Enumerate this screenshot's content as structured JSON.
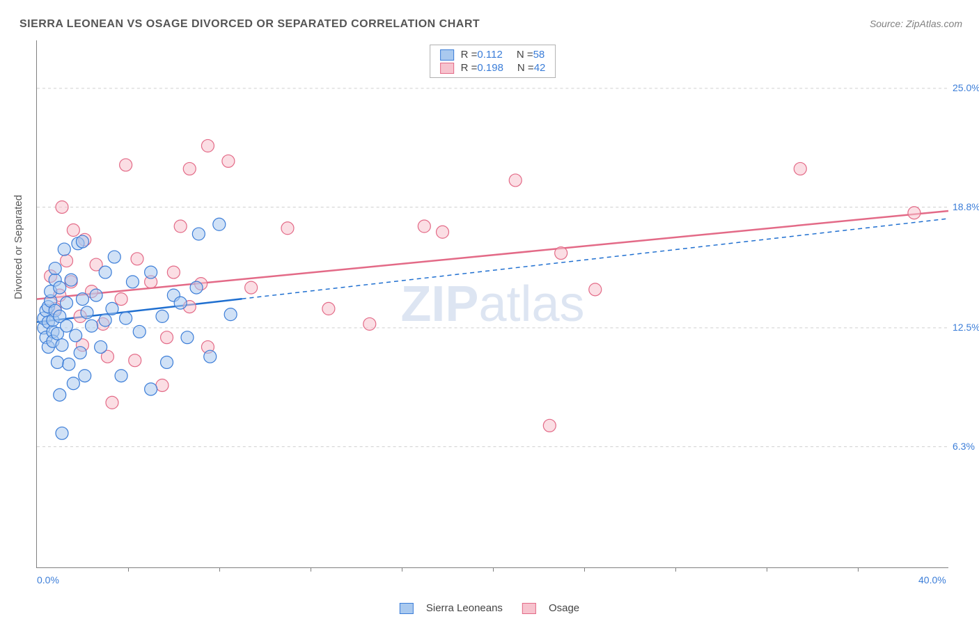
{
  "title": "SIERRA LEONEAN VS OSAGE DIVORCED OR SEPARATED CORRELATION CHART",
  "source": "Source: ZipAtlas.com",
  "ylabel": "Divorced or Separated",
  "watermark_text": "ZIPatlas",
  "chart": {
    "type": "scatter",
    "xlim": [
      0.0,
      40.0
    ],
    "ylim": [
      0.0,
      27.5
    ],
    "x_ticks_labeled": {
      "0": "0.0%",
      "40": "40.0%"
    },
    "x_minor_ticks": [
      4,
      8,
      12,
      16,
      20,
      24,
      28,
      32,
      36
    ],
    "y_gridlines": {
      "6.3": "6.3%",
      "12.5": "12.5%",
      "18.8": "18.8%",
      "25.0": "25.0%"
    },
    "background_color": "#ffffff",
    "grid_color": "#cfcfcf",
    "axis_color": "#808080",
    "tick_label_color": "#3b7dd8",
    "title_color": "#555555",
    "title_fontsize": 16,
    "label_fontsize": 15,
    "tick_fontsize": 14,
    "marker_radius": 9,
    "marker_opacity": 0.55,
    "series": {
      "sierra": {
        "label": "Sierra Leoneans",
        "R": "0.112",
        "N": "58",
        "fill": "#a9c9ef",
        "stroke": "#3b7dd8",
        "trend_color": "#1f6fd0",
        "trend_width": 2.5,
        "trend_solid_x_end": 9.0,
        "trend_y_start": 12.8,
        "trend_y_end": 18.2,
        "points": [
          [
            0.3,
            12.5
          ],
          [
            0.3,
            13.0
          ],
          [
            0.4,
            13.4
          ],
          [
            0.4,
            12.0
          ],
          [
            0.5,
            12.8
          ],
          [
            0.5,
            13.6
          ],
          [
            0.5,
            11.5
          ],
          [
            0.6,
            13.9
          ],
          [
            0.6,
            14.4
          ],
          [
            0.7,
            12.3
          ],
          [
            0.7,
            11.8
          ],
          [
            0.7,
            12.9
          ],
          [
            0.8,
            13.4
          ],
          [
            0.8,
            15.0
          ],
          [
            0.8,
            15.6
          ],
          [
            0.9,
            12.2
          ],
          [
            0.9,
            10.7
          ],
          [
            1.0,
            13.1
          ],
          [
            1.0,
            9.0
          ],
          [
            1.0,
            14.6
          ],
          [
            1.1,
            11.6
          ],
          [
            1.1,
            7.0
          ],
          [
            1.2,
            16.6
          ],
          [
            1.3,
            12.6
          ],
          [
            1.3,
            13.8
          ],
          [
            1.4,
            10.6
          ],
          [
            1.5,
            15.0
          ],
          [
            1.6,
            9.6
          ],
          [
            1.7,
            12.1
          ],
          [
            1.8,
            16.9
          ],
          [
            1.9,
            11.2
          ],
          [
            2.0,
            14.0
          ],
          [
            2.0,
            17.0
          ],
          [
            2.1,
            10.0
          ],
          [
            2.2,
            13.3
          ],
          [
            2.4,
            12.6
          ],
          [
            2.6,
            14.2
          ],
          [
            2.8,
            11.5
          ],
          [
            3.0,
            12.9
          ],
          [
            3.0,
            15.4
          ],
          [
            3.3,
            13.5
          ],
          [
            3.4,
            16.2
          ],
          [
            3.7,
            10.0
          ],
          [
            3.9,
            13.0
          ],
          [
            4.2,
            14.9
          ],
          [
            4.5,
            12.3
          ],
          [
            5.0,
            9.3
          ],
          [
            5.0,
            15.4
          ],
          [
            5.5,
            13.1
          ],
          [
            5.7,
            10.7
          ],
          [
            6.0,
            14.2
          ],
          [
            6.3,
            13.8
          ],
          [
            6.6,
            12.0
          ],
          [
            7.0,
            14.6
          ],
          [
            7.1,
            17.4
          ],
          [
            7.6,
            11.0
          ],
          [
            8.0,
            17.9
          ],
          [
            8.5,
            13.2
          ]
        ]
      },
      "osage": {
        "label": "Osage",
        "R": "0.198",
        "N": "42",
        "fill": "#f7c3ce",
        "stroke": "#e36a87",
        "trend_color": "#e36a87",
        "trend_width": 2.5,
        "trend_solid_x_end": 40.0,
        "trend_y_start": 14.0,
        "trend_y_end": 18.6,
        "points": [
          [
            0.6,
            15.2
          ],
          [
            0.8,
            13.5
          ],
          [
            1.0,
            14.2
          ],
          [
            1.1,
            18.8
          ],
          [
            1.3,
            16.0
          ],
          [
            1.5,
            14.9
          ],
          [
            1.6,
            17.6
          ],
          [
            1.9,
            13.1
          ],
          [
            2.0,
            11.6
          ],
          [
            2.1,
            17.1
          ],
          [
            2.4,
            14.4
          ],
          [
            2.6,
            15.8
          ],
          [
            2.9,
            12.7
          ],
          [
            3.1,
            11.0
          ],
          [
            3.3,
            8.6
          ],
          [
            3.7,
            14.0
          ],
          [
            3.9,
            21.0
          ],
          [
            4.3,
            10.8
          ],
          [
            4.4,
            16.1
          ],
          [
            5.0,
            14.9
          ],
          [
            5.5,
            9.5
          ],
          [
            5.7,
            12.0
          ],
          [
            6.0,
            15.4
          ],
          [
            6.3,
            17.8
          ],
          [
            6.7,
            13.6
          ],
          [
            6.7,
            20.8
          ],
          [
            7.2,
            14.8
          ],
          [
            7.5,
            22.0
          ],
          [
            7.5,
            11.5
          ],
          [
            8.4,
            21.2
          ],
          [
            9.4,
            14.6
          ],
          [
            11.0,
            17.7
          ],
          [
            12.8,
            13.5
          ],
          [
            14.6,
            12.7
          ],
          [
            17.0,
            17.8
          ],
          [
            17.8,
            17.5
          ],
          [
            21.0,
            20.2
          ],
          [
            22.5,
            7.4
          ],
          [
            23.0,
            16.4
          ],
          [
            24.5,
            14.5
          ],
          [
            33.5,
            20.8
          ],
          [
            38.5,
            18.5
          ]
        ]
      }
    }
  },
  "legend_stat_prefix_R": "R  =  ",
  "legend_stat_prefix_N": "N  =  "
}
